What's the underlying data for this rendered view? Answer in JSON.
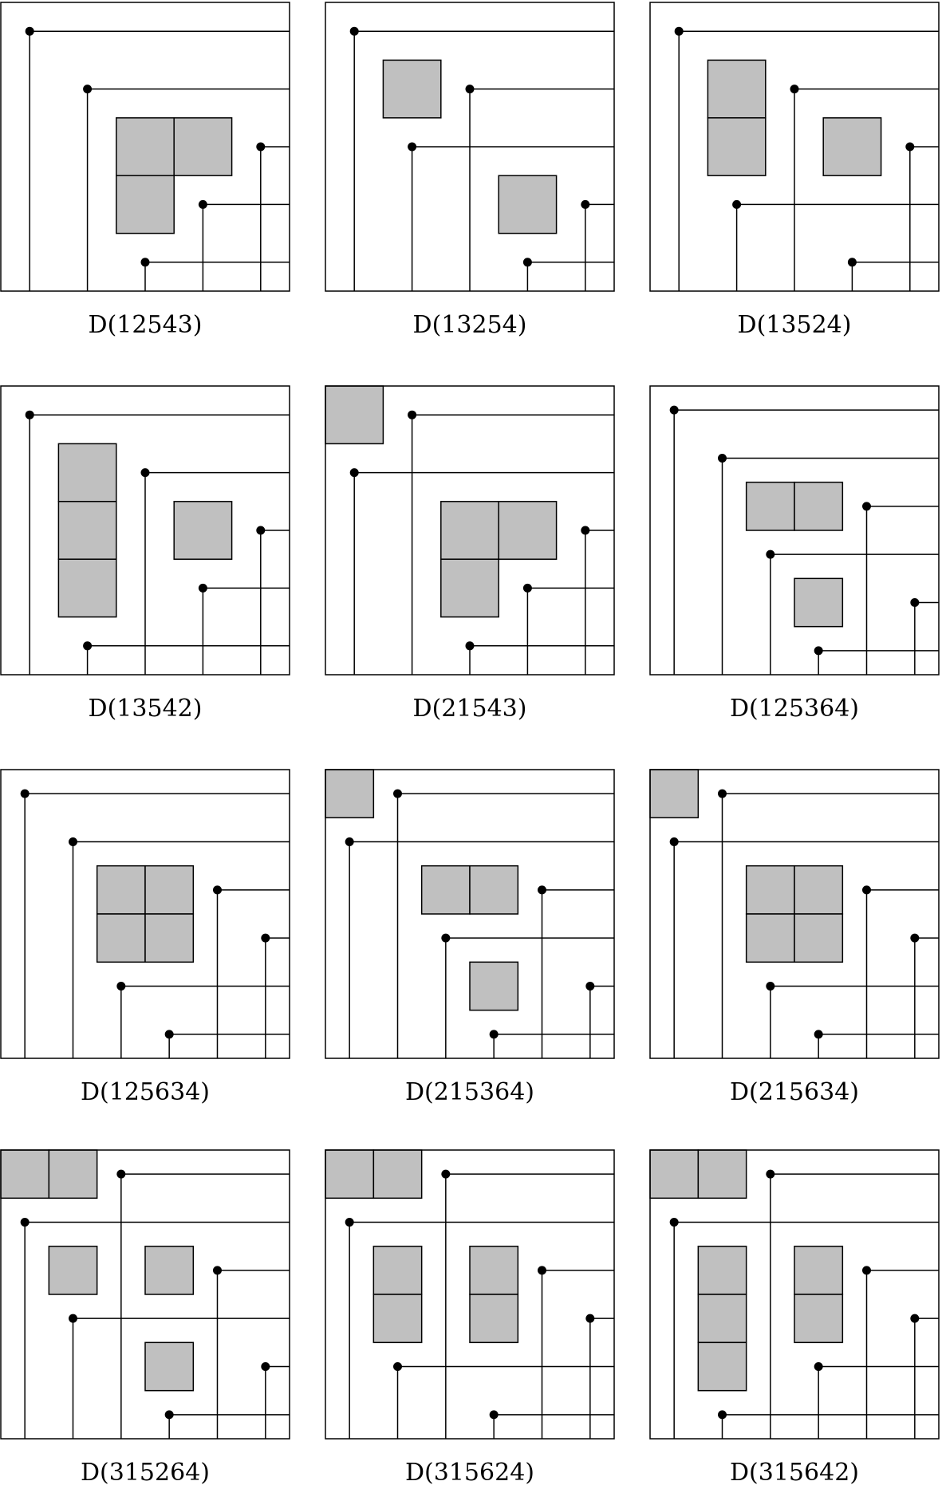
{
  "diagrams": [
    {
      "caption": "D(12543)",
      "permutation": [
        1,
        2,
        5,
        4,
        3
      ]
    },
    {
      "caption": "D(13254)",
      "permutation": [
        1,
        3,
        2,
        5,
        4
      ]
    },
    {
      "caption": "D(13524)",
      "permutation": [
        1,
        3,
        5,
        2,
        4
      ]
    },
    {
      "caption": "D(13542)",
      "permutation": [
        1,
        3,
        5,
        4,
        2
      ]
    },
    {
      "caption": "D(21543)",
      "permutation": [
        2,
        1,
        5,
        4,
        3
      ]
    },
    {
      "caption": "D(125364)",
      "permutation": [
        1,
        2,
        5,
        3,
        6,
        4
      ]
    },
    {
      "caption": "D(125634)",
      "permutation": [
        1,
        2,
        5,
        6,
        3,
        4
      ]
    },
    {
      "caption": "D(215364)",
      "permutation": [
        2,
        1,
        5,
        3,
        6,
        4
      ]
    },
    {
      "caption": "D(215634)",
      "permutation": [
        2,
        1,
        5,
        6,
        3,
        4
      ]
    },
    {
      "caption": "D(315264)",
      "permutation": [
        3,
        1,
        5,
        2,
        6,
        4
      ]
    },
    {
      "caption": "D(315624)",
      "permutation": [
        3,
        1,
        5,
        6,
        2,
        4
      ]
    },
    {
      "caption": "D(315642)",
      "permutation": [
        3,
        1,
        5,
        6,
        4,
        2
      ]
    }
  ]
}
